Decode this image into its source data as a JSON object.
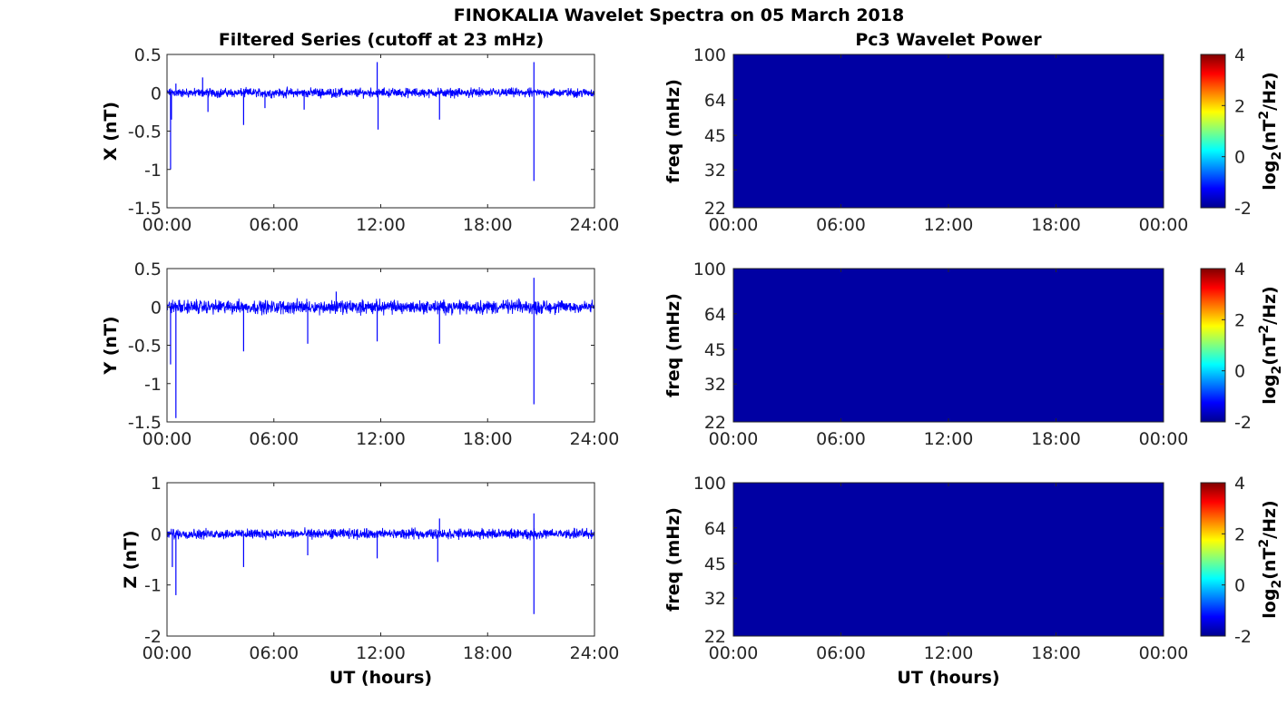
{
  "figure": {
    "title": "FINOKALIA Wavelet Spectra on 05 March 2018",
    "left_title": "Filtered Series (cutoff at 23 mHz)",
    "right_title": "Pc3 Wavelet Power",
    "xlabel": "UT (hours)"
  },
  "colors": {
    "series": "#0000ff",
    "spectrogram_bg": "#0000a3"
  },
  "chart_data": [
    {
      "type": "line",
      "title": "",
      "ylabel": "X (nT)",
      "xlabel": "",
      "x_ticks": [
        0,
        6,
        12,
        18,
        24
      ],
      "x_tick_labels": [
        "00:00",
        "06:00",
        "12:00",
        "18:00",
        "24:00"
      ],
      "xlim": [
        0,
        24
      ],
      "ylim": [
        -1.5,
        0.5
      ],
      "y_ticks": [
        0.5,
        0,
        -0.5,
        -1,
        -1.5
      ],
      "y_tick_labels": [
        "0.5",
        "0",
        "-0.5",
        "-1",
        "-1.5"
      ],
      "noise_band": [
        -0.08,
        0.08
      ],
      "spikes": [
        {
          "t": 0.2,
          "v": -1.0
        },
        {
          "t": 0.25,
          "v": -0.35
        },
        {
          "t": 0.5,
          "v": 0.12
        },
        {
          "t": 2.0,
          "v": 0.2
        },
        {
          "t": 2.3,
          "v": -0.25
        },
        {
          "t": 4.3,
          "v": -0.42
        },
        {
          "t": 5.5,
          "v": -0.2
        },
        {
          "t": 7.7,
          "v": -0.22
        },
        {
          "t": 11.8,
          "v": 0.4
        },
        {
          "t": 11.85,
          "v": -0.48
        },
        {
          "t": 15.3,
          "v": -0.35
        },
        {
          "t": 20.6,
          "v": -1.15
        },
        {
          "t": 20.6,
          "v": 0.4
        }
      ]
    },
    {
      "type": "line",
      "title": "",
      "ylabel": "Y (nT)",
      "xlabel": "",
      "x_ticks": [
        0,
        6,
        12,
        18,
        24
      ],
      "x_tick_labels": [
        "00:00",
        "06:00",
        "12:00",
        "18:00",
        "24:00"
      ],
      "xlim": [
        0,
        24
      ],
      "ylim": [
        -1.5,
        0.5
      ],
      "y_ticks": [
        0.5,
        0,
        -0.5,
        -1,
        -1.5
      ],
      "y_tick_labels": [
        "0.5",
        "0",
        "-0.5",
        "-1",
        "-1.5"
      ],
      "noise_band": [
        -0.12,
        0.12
      ],
      "spikes": [
        {
          "t": 0.2,
          "v": -0.75
        },
        {
          "t": 0.5,
          "v": -1.45
        },
        {
          "t": 4.3,
          "v": -0.58
        },
        {
          "t": 7.9,
          "v": -0.48
        },
        {
          "t": 9.5,
          "v": 0.2
        },
        {
          "t": 11.8,
          "v": -0.45
        },
        {
          "t": 15.3,
          "v": -0.48
        },
        {
          "t": 20.6,
          "v": -1.27
        },
        {
          "t": 20.6,
          "v": 0.38
        }
      ]
    },
    {
      "type": "line",
      "title": "",
      "ylabel": "Z (nT)",
      "xlabel": "UT (hours)",
      "x_ticks": [
        0,
        6,
        12,
        18,
        24
      ],
      "x_tick_labels": [
        "00:00",
        "06:00",
        "12:00",
        "18:00",
        "24:00"
      ],
      "xlim": [
        0,
        24
      ],
      "ylim": [
        -2,
        1
      ],
      "y_ticks": [
        1,
        0,
        -1,
        -2
      ],
      "y_tick_labels": [
        "1",
        "0",
        "-1",
        "-2"
      ],
      "noise_band": [
        -0.13,
        0.13
      ],
      "spikes": [
        {
          "t": 0.3,
          "v": -0.65
        },
        {
          "t": 0.5,
          "v": -1.2
        },
        {
          "t": 4.3,
          "v": -0.65
        },
        {
          "t": 7.9,
          "v": -0.42
        },
        {
          "t": 11.8,
          "v": -0.48
        },
        {
          "t": 15.2,
          "v": -0.55
        },
        {
          "t": 15.3,
          "v": 0.3
        },
        {
          "t": 20.6,
          "v": -1.57
        },
        {
          "t": 20.6,
          "v": 0.4
        }
      ]
    },
    {
      "type": "heatmap",
      "title": "",
      "ylabel": "freq (mHz)",
      "xlabel": "",
      "x_tick_labels": [
        "00:00",
        "06:00",
        "12:00",
        "18:00",
        "00:00"
      ],
      "y_scale": "log",
      "ylim": [
        22,
        100
      ],
      "y_ticks": [
        100,
        64,
        45,
        32,
        22
      ],
      "y_tick_labels": [
        "100",
        "64",
        "45",
        "32",
        "22"
      ],
      "colorbar_label": "log2(nT^2/Hz)",
      "colorbar_ticks": [
        "4",
        "2",
        "0",
        "-2"
      ],
      "clim": [
        -2,
        4
      ],
      "value": -2
    },
    {
      "type": "heatmap",
      "title": "",
      "ylabel": "freq (mHz)",
      "xlabel": "",
      "x_tick_labels": [
        "00:00",
        "06:00",
        "12:00",
        "18:00",
        "00:00"
      ],
      "y_scale": "log",
      "ylim": [
        22,
        100
      ],
      "y_ticks": [
        100,
        64,
        45,
        32,
        22
      ],
      "y_tick_labels": [
        "100",
        "64",
        "45",
        "32",
        "22"
      ],
      "colorbar_label": "log2(nT^2/Hz)",
      "colorbar_ticks": [
        "4",
        "2",
        "0",
        "-2"
      ],
      "clim": [
        -2,
        4
      ],
      "value": -2
    },
    {
      "type": "heatmap",
      "title": "",
      "ylabel": "freq (mHz)",
      "xlabel": "UT (hours)",
      "x_tick_labels": [
        "00:00",
        "06:00",
        "12:00",
        "18:00",
        "00:00"
      ],
      "y_scale": "log",
      "ylim": [
        22,
        100
      ],
      "y_ticks": [
        100,
        64,
        45,
        32,
        22
      ],
      "y_tick_labels": [
        "100",
        "64",
        "45",
        "32",
        "22"
      ],
      "colorbar_label": "log2(nT^2/Hz)",
      "colorbar_ticks": [
        "4",
        "2",
        "0",
        "-2"
      ],
      "clim": [
        -2,
        4
      ],
      "value": -2
    }
  ]
}
